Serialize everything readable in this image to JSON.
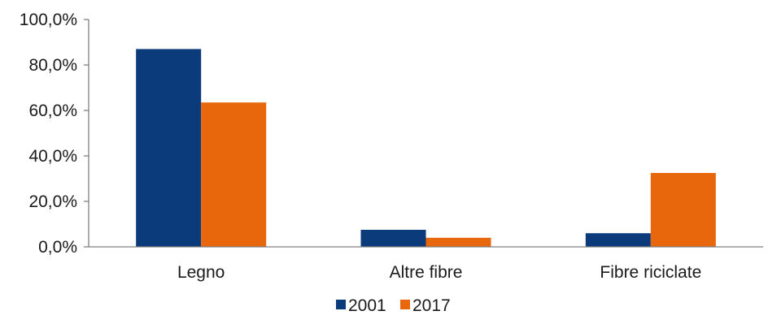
{
  "chart_data": {
    "type": "bar",
    "categories": [
      "Legno",
      "Altre fibre",
      "Fibre riciclate"
    ],
    "series": [
      {
        "name": "2001",
        "values": [
          87.0,
          7.5,
          6.0
        ],
        "color": "#0c3b7c"
      },
      {
        "name": "2017",
        "values": [
          63.5,
          4.0,
          32.5
        ],
        "color": "#e8660c"
      }
    ],
    "ylim": [
      0,
      100
    ],
    "yticks": [
      0,
      20,
      40,
      60,
      80,
      100
    ],
    "ytick_labels": [
      "0,0%",
      "20,0%",
      "40,0%",
      "60,0%",
      "80,0%",
      "100,0%"
    ],
    "legend_position": "bottom-center",
    "grid": false,
    "title": "",
    "xlabel": "",
    "ylabel": ""
  }
}
